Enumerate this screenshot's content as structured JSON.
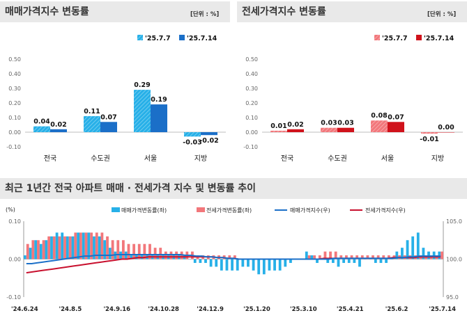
{
  "panel1": {
    "title": "매매가격지수 변동률",
    "unit": "[단위 : %]",
    "legend": [
      "'25.7.7",
      "'25.7.14"
    ],
    "colors": [
      "#27b0e8",
      "#1b6fc8"
    ],
    "yticks": [
      "0.50",
      "0.40",
      "0.30",
      "0.20",
      "0.10",
      "0.00",
      "-0.10"
    ]
  },
  "panel2": {
    "title": "전세가격지수 변동률",
    "unit": "[단위 : %]",
    "legend": [
      "'25.7.7",
      "'25.7.14"
    ],
    "colors": [
      "#f2777b",
      "#d0121b"
    ],
    "yticks": [
      "0.50",
      "0.40",
      "0.30",
      "0.20",
      "0.10",
      "0.00",
      "-0.10"
    ]
  },
  "panel3": {
    "title": "최근 1년간 전국 아파트 매매 · 전세가격 지수 및 변동률 추이",
    "unit_left": "(%)",
    "legend": [
      "매매가격변동률(좌)",
      "전세가격변동률(좌)",
      "매매가격지수(우)",
      "전세가격지수(우)"
    ],
    "left_ticks": [
      "0.10",
      "0.00",
      "-0.10"
    ],
    "right_ticks": [
      "105.0",
      "100.0",
      "95.0"
    ],
    "xticks": [
      "'24.6.24",
      "'24.8.5",
      "'24.9.16",
      "'24.10.28",
      "'24.12.9",
      "'25.1.20",
      "'25.3.10",
      "'25.4.21",
      "'25.6.2",
      "'25.7.14"
    ],
    "colors": {
      "sale_bar": "#27b0e8",
      "jeonse_bar": "#f2777b",
      "sale_line": "#1b6fc8",
      "jeonse_line": "#c8102e"
    }
  },
  "chart_data": [
    {
      "type": "bar",
      "title": "매매가격지수 변동률",
      "categories": [
        "전국",
        "수도권",
        "서울",
        "지방"
      ],
      "series": [
        {
          "name": "'25.7.7",
          "values": [
            0.04,
            0.11,
            0.29,
            -0.03
          ]
        },
        {
          "name": "'25.7.14",
          "values": [
            0.02,
            0.07,
            0.19,
            -0.02
          ]
        }
      ],
      "ylim": [
        -0.1,
        0.5
      ]
    },
    {
      "type": "bar",
      "title": "전세가격지수 변동률",
      "categories": [
        "전국",
        "수도권",
        "서울",
        "지방"
      ],
      "series": [
        {
          "name": "'25.7.7",
          "values": [
            0.01,
            0.03,
            0.08,
            -0.01
          ]
        },
        {
          "name": "'25.7.14",
          "values": [
            0.02,
            0.03,
            0.07,
            0.0
          ]
        }
      ],
      "ylim": [
        -0.1,
        0.5
      ]
    },
    {
      "type": "bar",
      "title": "최근 1년간 전국 아파트 매매 · 전세가격 지수 및 변동률 추이",
      "ylim_left": [
        -0.1,
        0.1
      ],
      "ylim_right": [
        95.0,
        105.0
      ],
      "series": [
        {
          "name": "매매가격변동률(좌)",
          "values": [
            0.01,
            0.03,
            0.05,
            0.04,
            0.05,
            0.06,
            0.07,
            0.07,
            0.06,
            0.06,
            0.07,
            0.07,
            0.07,
            0.06,
            0.06,
            0.05,
            0.03,
            0.02,
            0.02,
            0.02,
            0.01,
            0.01,
            0.01,
            0.01,
            0.01,
            0.01,
            0.01,
            0.01,
            0.01,
            0.01,
            0.01,
            0.0,
            -0.01,
            -0.01,
            -0.01,
            -0.02,
            -0.02,
            -0.03,
            -0.03,
            -0.03,
            -0.03,
            -0.02,
            -0.02,
            -0.03,
            -0.04,
            -0.04,
            -0.03,
            -0.03,
            -0.03,
            -0.02,
            -0.01,
            0.0,
            0.0,
            0.02,
            0.01,
            -0.01,
            0.0,
            -0.01,
            -0.01,
            -0.02,
            -0.01,
            -0.01,
            -0.01,
            -0.02,
            0.0,
            0.0,
            -0.01,
            -0.01,
            -0.01,
            0.0,
            0.02,
            0.03,
            0.05,
            0.06,
            0.07,
            0.03,
            0.02,
            0.02,
            0.02
          ]
        },
        {
          "name": "전세가격변동률(좌)",
          "values": [
            0.04,
            0.05,
            0.05,
            0.05,
            0.06,
            0.06,
            0.06,
            0.06,
            0.06,
            0.07,
            0.07,
            0.07,
            0.07,
            0.07,
            0.07,
            0.06,
            0.05,
            0.05,
            0.05,
            0.04,
            0.04,
            0.04,
            0.04,
            0.04,
            0.03,
            0.03,
            0.02,
            0.02,
            0.02,
            0.02,
            0.02,
            0.02,
            0.01,
            0.01,
            0.01,
            0.01,
            0.01,
            0.01,
            0.01,
            0.01,
            0.0,
            0.0,
            0.0,
            0.0,
            0.0,
            0.0,
            0.0,
            0.0,
            0.0,
            0.0,
            0.0,
            0.0,
            0.0,
            0.01,
            0.01,
            0.01,
            0.02,
            0.02,
            0.02,
            0.01,
            0.01,
            0.01,
            0.01,
            0.01,
            0.01,
            0.01,
            0.01,
            0.01,
            0.01,
            0.01,
            0.01,
            0.01,
            0.01,
            0.01,
            0.01,
            0.01,
            0.01,
            0.01,
            0.02
          ]
        },
        {
          "name": "매매가격지수(우)",
          "values": [
            99.4,
            99.4,
            99.5,
            99.6,
            99.7,
            99.8,
            99.9,
            100.0,
            100.1,
            100.2,
            100.3,
            100.4,
            100.4,
            100.5,
            100.5,
            100.5,
            100.5,
            100.6,
            100.6,
            100.6,
            100.6,
            100.6,
            100.6,
            100.6,
            100.6,
            100.6,
            100.6,
            100.6,
            100.6,
            100.6,
            100.5,
            100.5,
            100.4,
            100.4,
            100.3,
            100.3,
            100.2,
            100.2,
            100.1,
            100.1,
            100.0,
            100.0,
            100.0,
            100.0,
            100.0,
            100.0,
            100.0,
            100.0,
            100.0,
            100.0,
            100.0,
            100.0,
            100.0,
            100.0,
            100.0,
            100.0,
            100.0,
            100.0,
            100.1,
            100.1,
            100.1,
            100.1,
            100.1,
            100.1,
            100.1,
            100.1,
            100.1,
            100.1,
            100.1,
            100.1,
            100.2,
            100.2,
            100.3,
            100.3,
            100.4,
            100.4,
            100.4,
            100.4,
            100.4
          ]
        },
        {
          "name": "전세가격지수(우)",
          "values": [
            98.2,
            98.3,
            98.4,
            98.5,
            98.6,
            98.7,
            98.8,
            98.9,
            99.0,
            99.1,
            99.2,
            99.3,
            99.4,
            99.5,
            99.6,
            99.7,
            99.8,
            99.9,
            100.0,
            100.0,
            100.1,
            100.2,
            100.2,
            100.3,
            100.3,
            100.3,
            100.3,
            100.3,
            100.3,
            100.3,
            100.3,
            100.3,
            100.3,
            100.3,
            100.3,
            100.3,
            100.2,
            100.2,
            100.1,
            100.1,
            100.0,
            100.0,
            100.0,
            100.0,
            100.0,
            100.0,
            100.0,
            100.0,
            100.0,
            100.0,
            100.0,
            100.0,
            100.0,
            100.0,
            100.0,
            100.0,
            100.1,
            100.1,
            100.1,
            100.1,
            100.1,
            100.1,
            100.1,
            100.1,
            100.1,
            100.1,
            100.1,
            100.1,
            100.1,
            100.2,
            100.2,
            100.2,
            100.2,
            100.2,
            100.3,
            100.3,
            100.3,
            100.3,
            100.3
          ]
        }
      ]
    }
  ]
}
